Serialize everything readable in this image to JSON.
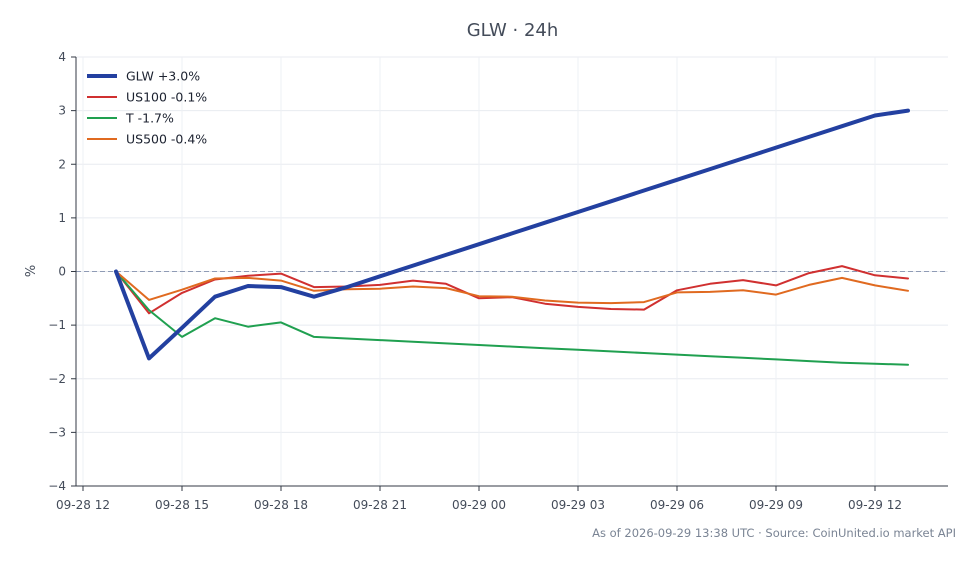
{
  "chart_data": {
    "type": "line",
    "title": "GLW · 24h",
    "ylabel": "%",
    "xlabel": "",
    "x": [
      "09-28 13:00",
      "09-28 14:00",
      "09-28 15:00",
      "09-28 16:00",
      "09-28 17:00",
      "09-28 18:00",
      "09-28 19:00",
      "09-28 20:00",
      "09-28 21:00",
      "09-28 22:00",
      "09-28 23:00",
      "09-29 00:00",
      "09-29 01:00",
      "09-29 02:00",
      "09-29 03:00",
      "09-29 04:00",
      "09-29 05:00",
      "09-29 06:00",
      "09-29 07:00",
      "09-29 08:00",
      "09-29 09:00",
      "09-29 10:00",
      "09-29 11:00",
      "09-29 12:00",
      "09-29 13:00"
    ],
    "x_ticks": [
      "09-28 12",
      "09-28 15",
      "09-28 18",
      "09-28 21",
      "09-29 00",
      "09-29 03",
      "09-29 06",
      "09-29 09",
      "09-29 12"
    ],
    "y_ticks": [
      "4",
      "3",
      "2",
      "1",
      "0",
      "−1",
      "−2",
      "−3",
      "−4"
    ],
    "ylim": [
      -4,
      4
    ],
    "grid": true,
    "zero_line": true,
    "legend": "top-left",
    "series": [
      {
        "name": "GLW +3.0%",
        "color": "#2340a0",
        "width": 4,
        "values": [
          0.0,
          -1.62,
          -1.05,
          -0.47,
          -0.27,
          -0.29,
          -0.47,
          -0.29,
          -0.09,
          0.11,
          0.31,
          0.51,
          0.71,
          0.91,
          1.11,
          1.31,
          1.51,
          1.71,
          1.91,
          2.11,
          2.31,
          2.51,
          2.71,
          2.91,
          3.0
        ]
      },
      {
        "name": "US100 -0.1%",
        "color": "#d03030",
        "width": 2,
        "values": [
          0.0,
          -0.78,
          -0.4,
          -0.15,
          -0.08,
          -0.04,
          -0.29,
          -0.28,
          -0.25,
          -0.17,
          -0.23,
          -0.5,
          -0.48,
          -0.6,
          -0.66,
          -0.7,
          -0.71,
          -0.35,
          -0.23,
          -0.16,
          -0.26,
          -0.03,
          0.1,
          -0.07,
          -0.13
        ]
      },
      {
        "name": "T -1.7%",
        "color": "#20a050",
        "width": 2,
        "values": [
          0.0,
          -0.72,
          -1.22,
          -0.87,
          -1.03,
          -0.95,
          -1.22,
          -1.25,
          -1.28,
          -1.31,
          -1.34,
          -1.37,
          -1.4,
          -1.43,
          -1.46,
          -1.49,
          -1.52,
          -1.55,
          -1.58,
          -1.61,
          -1.64,
          -1.67,
          -1.7,
          -1.72,
          -1.74
        ]
      },
      {
        "name": "US500 -0.4%",
        "color": "#e06a20",
        "width": 2,
        "values": [
          0.0,
          -0.53,
          -0.34,
          -0.13,
          -0.12,
          -0.17,
          -0.36,
          -0.33,
          -0.32,
          -0.28,
          -0.31,
          -0.46,
          -0.47,
          -0.54,
          -0.58,
          -0.59,
          -0.57,
          -0.39,
          -0.38,
          -0.35,
          -0.43,
          -0.25,
          -0.12,
          -0.26,
          -0.36
        ]
      }
    ]
  },
  "footer": "As of 2026-09-29 13:38 UTC · Source: CoinUnited.io market API"
}
